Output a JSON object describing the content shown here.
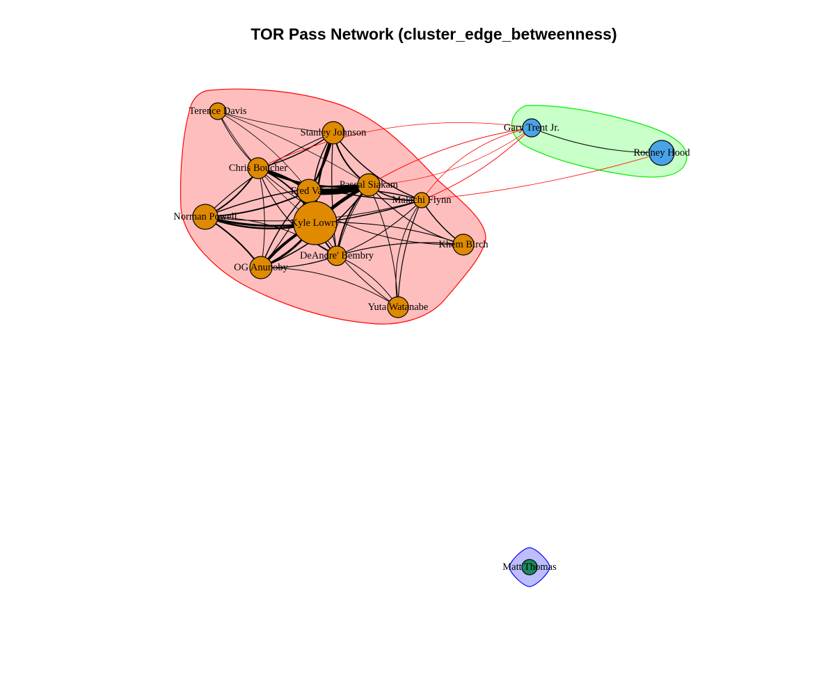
{
  "title": "TOR Pass Network (cluster_edge_betweenness)",
  "colors": {
    "cluster1_fill": "#ffb3b3",
    "cluster1_border": "#ff0000",
    "cluster2_fill": "#bfffbf",
    "cluster2_border": "#00ee00",
    "cluster3_fill": "#b3b3ff",
    "cluster3_border": "#0000ff",
    "node_c1": "#e08a00",
    "node_c2": "#4aa3e6",
    "node_c3": "#1a8a5a",
    "edge_within": "#000000",
    "edge_between": "#ff0000"
  },
  "nodes": [
    {
      "id": "terence",
      "label": "Terence Davis",
      "cluster": 1
    },
    {
      "id": "stanley",
      "label": "Stanley Johnson",
      "cluster": 1
    },
    {
      "id": "chris",
      "label": "Chris Boucher",
      "cluster": 1
    },
    {
      "id": "fred",
      "label": "Fred Van",
      "cluster": 1
    },
    {
      "id": "pascal",
      "label": "Pascal Siakam",
      "cluster": 1
    },
    {
      "id": "malachi",
      "label": "Malachi Flynn",
      "cluster": 1
    },
    {
      "id": "norman",
      "label": "Norman Powell",
      "cluster": 1
    },
    {
      "id": "kyle",
      "label": "Kyle Lowry",
      "cluster": 1
    },
    {
      "id": "khem",
      "label": "Khem Birch",
      "cluster": 1
    },
    {
      "id": "deandre",
      "label": "DeAndre' Bembry",
      "cluster": 1
    },
    {
      "id": "og",
      "label": "OG Anunoby",
      "cluster": 1
    },
    {
      "id": "yuta",
      "label": "Yuta Watanabe",
      "cluster": 1
    },
    {
      "id": "gary",
      "label": "Gary Trent Jr.",
      "cluster": 2
    },
    {
      "id": "rodney",
      "label": "Rodney Hood",
      "cluster": 2
    },
    {
      "id": "matt",
      "label": "Matt Thomas",
      "cluster": 3
    }
  ]
}
